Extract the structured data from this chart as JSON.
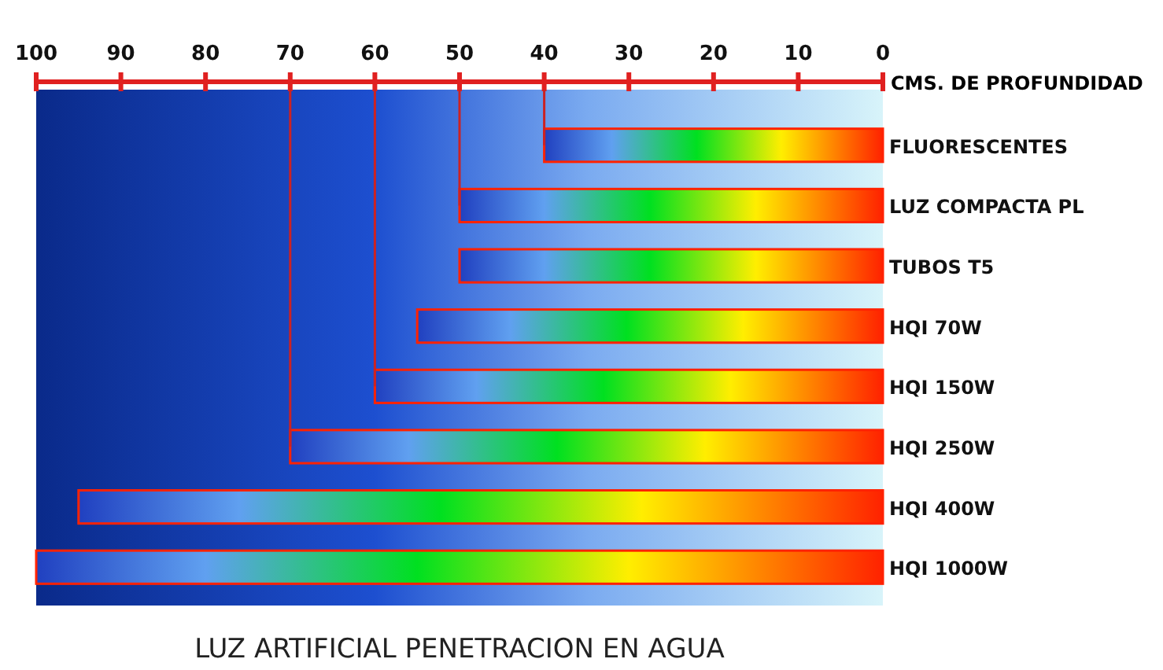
{
  "chart_data": {
    "type": "bar",
    "orientation": "horizontal",
    "title": "LUZ ARTIFICIAL PENETRACION EN AGUA",
    "xlabel": "CMS. DE PROFUNDIDAD",
    "categories": [
      "FLUORESCENTES",
      "LUZ COMPACTA PL",
      "TUBOS T5",
      "HQI 70W",
      "HQI 150W",
      "HQI 250W",
      "HQI 400W",
      "HQI 1000W"
    ],
    "series": [
      {
        "color": "#ff2200",
        "values": [
          40,
          50,
          50,
          55,
          60,
          70,
          95,
          100
        ]
      }
    ],
    "xlim": [
      100,
      0
    ],
    "xticks": [
      100,
      90,
      80,
      70,
      60,
      50,
      40,
      30,
      20,
      10,
      0
    ],
    "ref_lines": [
      {
        "axis": "x",
        "value": 40,
        "color": "#cc2222"
      },
      {
        "axis": "x",
        "value": 50,
        "color": "#cc2222"
      },
      {
        "axis": "x",
        "value": 60,
        "color": "#cc2222"
      },
      {
        "axis": "x",
        "value": 70,
        "color": "#cc2222"
      }
    ]
  }
}
